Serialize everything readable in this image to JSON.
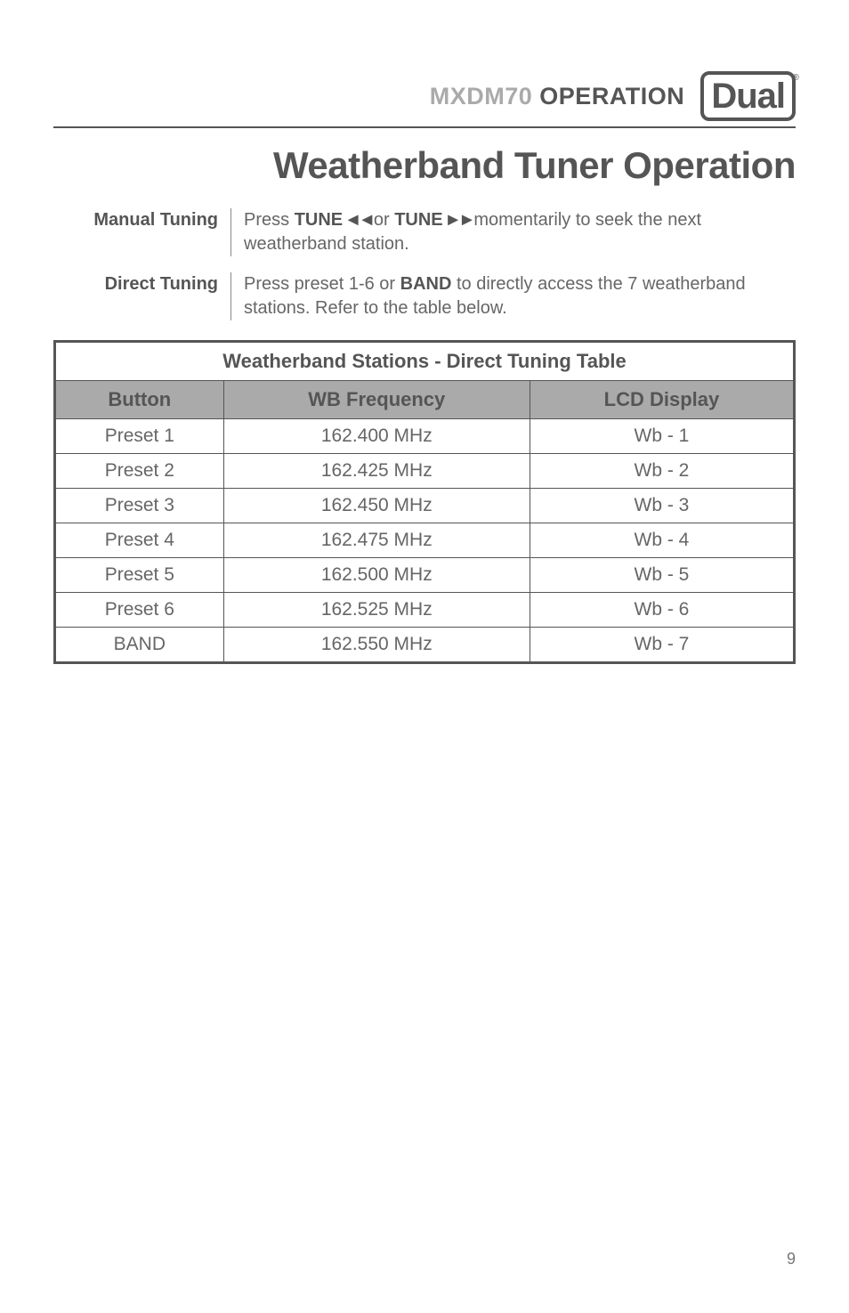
{
  "header": {
    "model": "MXDM70",
    "section": "OPERATION",
    "brand": "Dual",
    "reg": "®"
  },
  "title": "Weatherband Tuner Operation",
  "defs": [
    {
      "label": "Manual Tuning",
      "body_parts": {
        "pre": "Press  ",
        "b1": "TUNE",
        "arr1": " ◄◄ ",
        "mid": "or ",
        "b2": "TUNE",
        "arr2": " ►► ",
        "post": "momentarily to seek the next weatherband station."
      }
    },
    {
      "label": "Direct Tuning",
      "body_parts": {
        "pre": "Press preset 1-6 or ",
        "b1": "BAND",
        "post": " to directly access the 7 weather­band stations. Refer to the table below."
      }
    }
  ],
  "table": {
    "title": "Weatherband Stations - Direct Tuning Table",
    "columns": [
      "Button",
      "WB Frequency",
      "LCD Display"
    ],
    "rows": [
      [
        "Preset 1",
        "162.400 MHz",
        "Wb - 1"
      ],
      [
        "Preset 2",
        "162.425 MHz",
        "Wb - 2"
      ],
      [
        "Preset 3",
        "162.450 MHz",
        "Wb - 3"
      ],
      [
        "Preset 4",
        "162.475 MHz",
        "Wb - 4"
      ],
      [
        "Preset 5",
        "162.500 MHz",
        "Wb - 5"
      ],
      [
        "Preset 6",
        "162.525 MHz",
        "Wb - 6"
      ],
      [
        "BAND",
        "162.550 MHz",
        "Wb - 7"
      ]
    ]
  },
  "page_number": "9",
  "colors": {
    "text": "#555555",
    "muted": "#aaaaaa",
    "border": "#555555",
    "thead_bg": "#aaaaaa",
    "bg": "#ffffff"
  },
  "fonts": {
    "body_size_pt": 15,
    "title_size_pt": 32,
    "header_size_pt": 20,
    "table_size_pt": 16
  }
}
